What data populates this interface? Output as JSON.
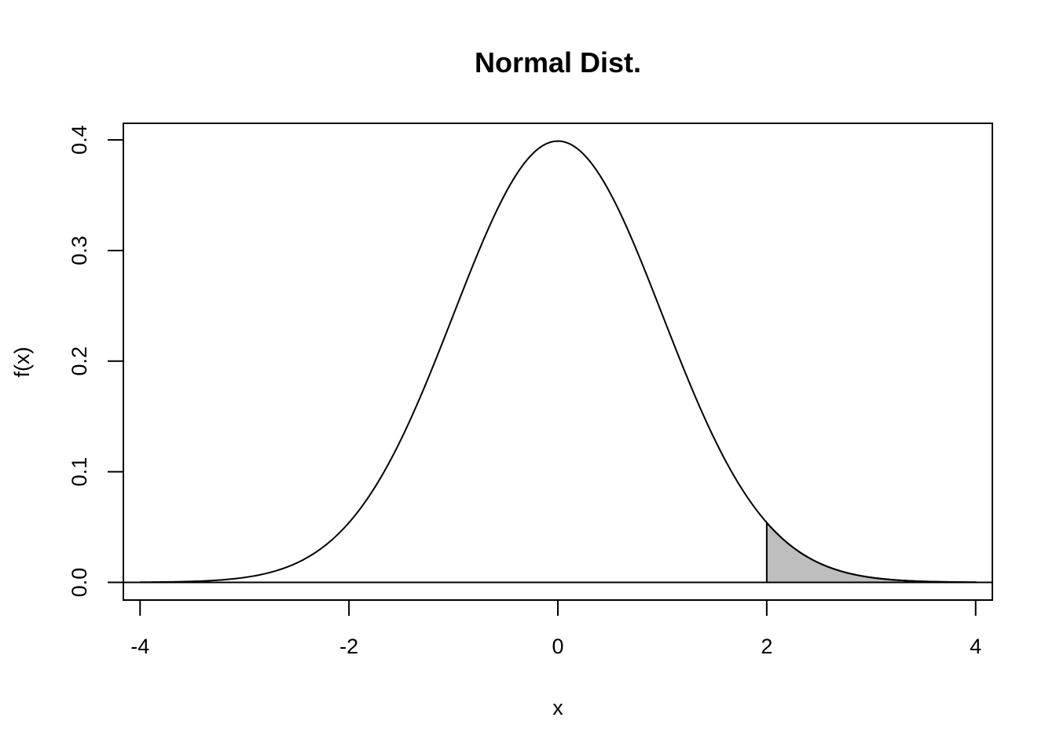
{
  "chart_data": {
    "type": "area",
    "title": "Normal Dist.",
    "xlabel": "x",
    "ylabel": "f(x)",
    "xlim": [
      -4.16,
      4.16
    ],
    "ylim": [
      -0.016,
      0.415
    ],
    "x_ticks": [
      -4,
      -2,
      0,
      2,
      4
    ],
    "x_tick_labels": [
      "-4",
      "-2",
      "0",
      "2",
      "4"
    ],
    "y_ticks": [
      0.0,
      0.1,
      0.2,
      0.3,
      0.4
    ],
    "y_tick_labels": [
      "0.0",
      "0.1",
      "0.2",
      "0.3",
      "0.4"
    ],
    "grid": false,
    "series": [
      {
        "x": [
          -4.0,
          -3.5,
          -3.0,
          -2.5,
          -2.0,
          -1.5,
          -1.0,
          -0.5,
          0.0,
          0.5,
          1.0,
          1.5,
          2.0,
          2.5,
          3.0,
          3.5,
          4.0
        ],
        "values": [
          0.0001,
          0.0009,
          0.0044,
          0.0175,
          0.054,
          0.1295,
          0.242,
          0.3521,
          0.3989,
          0.3521,
          0.242,
          0.1295,
          0.054,
          0.0175,
          0.0044,
          0.0009,
          0.0001
        ]
      }
    ],
    "shaded_region": {
      "x_from": 2,
      "x_to": 4,
      "color": "#bebebe"
    },
    "reference_line_y": 0,
    "line_color": "#000000"
  }
}
